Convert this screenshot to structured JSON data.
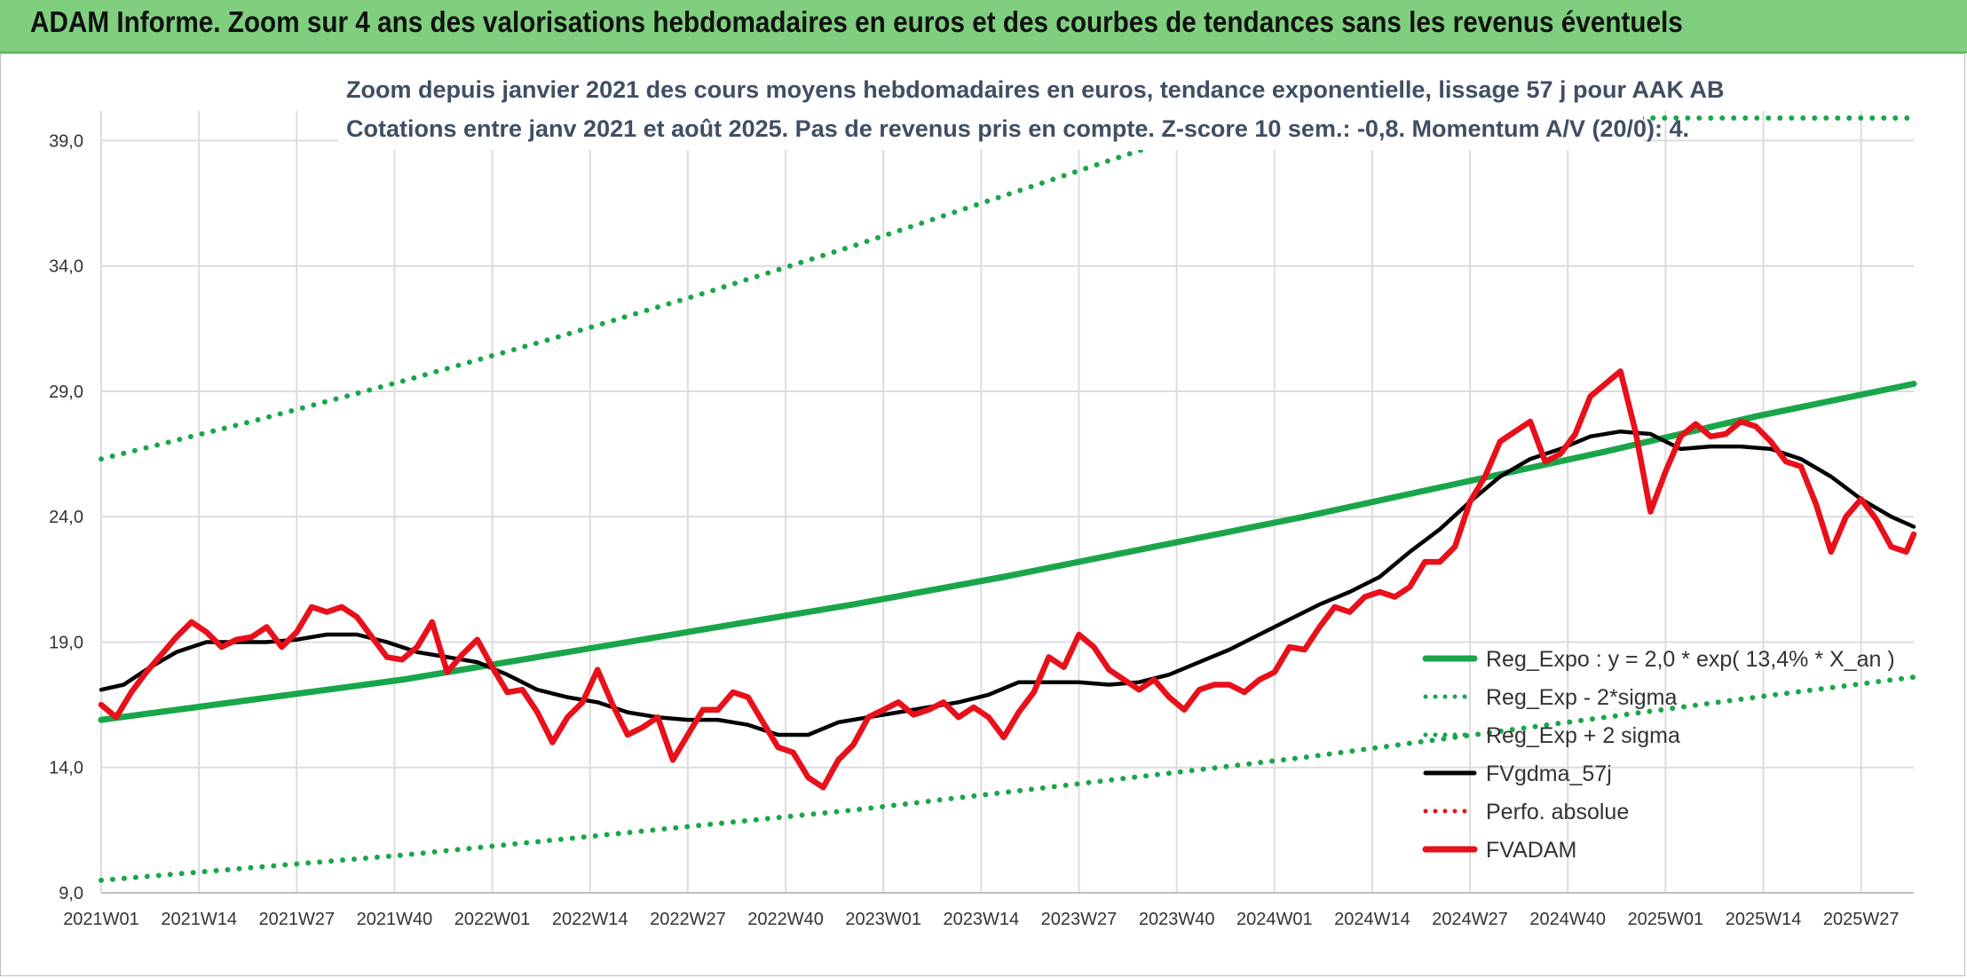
{
  "header": {
    "title": "ADAM Informe. Zoom sur 4 ans des valorisations hebdomadaires en euros et des courbes de tendances sans les revenus éventuels"
  },
  "chart_data": {
    "type": "line",
    "subtitle_line1": "Zoom depuis janvier 2021 des cours moyens hebdomadaires en euros, tendance exponentielle, lissage 57 j pour AAK AB",
    "subtitle_line2": "Cotations entre janv 2021 et août 2025. Pas de revenus pris en compte. Z-score 10 sem.: -0,8. Momentum A/V (20/0): 4.",
    "x_tick_labels": [
      "2021W01",
      "2021W14",
      "2021W27",
      "2021W40",
      "2022W01",
      "2022W14",
      "2022W27",
      "2022W40",
      "2023W01",
      "2023W14",
      "2023W27",
      "2023W40",
      "2024W01",
      "2024W14",
      "2024W27",
      "2024W40",
      "2025W01",
      "2025W14",
      "2025W27"
    ],
    "y_tick_labels": [
      "9,0",
      "14,0",
      "19,0",
      "24,0",
      "29,0",
      "34,0",
      "39,0"
    ],
    "y_ticks": [
      9,
      14,
      19,
      24,
      29,
      34,
      39
    ],
    "ylim": [
      9,
      39.9
    ],
    "x_unit": "weeks",
    "x_range_weeks": [
      0,
      241
    ],
    "grid": true,
    "legend_position": "bottom-right",
    "legend": [
      {
        "label": "Reg_Expo : y = 2,0 * exp( 13,4% *  X_an )",
        "style": "solid-thick",
        "color": "#19a64a"
      },
      {
        "label": "Reg_Exp - 2*sigma",
        "style": "dotted",
        "color": "#19a64a"
      },
      {
        "label": "Reg_Exp + 2 sigma",
        "style": "dotted",
        "color": "#19a64a"
      },
      {
        "label": "FVgdma_57j",
        "style": "solid",
        "color": "#000000"
      },
      {
        "label": "Perfo. absolue",
        "style": "dotted",
        "color": "#e8101a"
      },
      {
        "label": "FVADAM",
        "style": "solid-thick",
        "color": "#e8101a"
      }
    ],
    "series": [
      {
        "name": "Reg_Expo : y = 2,0 * exp( 13,4% *  X_an )",
        "color": "#19a64a",
        "style": "solid",
        "x": [
          0,
          20,
          40,
          60,
          80,
          100,
          120,
          140,
          160,
          180,
          200,
          220,
          241
        ],
        "values": [
          15.9,
          16.7,
          17.5,
          18.5,
          19.5,
          20.5,
          21.6,
          22.8,
          24.0,
          25.3,
          26.6,
          28.0,
          29.3
        ]
      },
      {
        "name": "Reg_Exp + 2 sigma",
        "color": "#19a64a",
        "style": "dotted",
        "x": [
          0,
          20,
          40,
          60,
          80,
          100,
          120,
          140,
          148,
          210,
          241
        ],
        "values": [
          26.3,
          27.8,
          29.4,
          31.1,
          32.9,
          34.8,
          36.8,
          38.8,
          39.9,
          39.9,
          39.9
        ]
      },
      {
        "name": "Reg_Exp - 2*sigma",
        "color": "#19a64a",
        "style": "dotted",
        "x": [
          0,
          20,
          40,
          60,
          80,
          100,
          120,
          140,
          160,
          180,
          200,
          220,
          241
        ],
        "values": [
          9.5,
          10.0,
          10.5,
          11.1,
          11.7,
          12.3,
          13.0,
          13.7,
          14.4,
          15.2,
          16.0,
          16.8,
          17.6
        ]
      },
      {
        "name": "FVgdma_57j",
        "color": "#000000",
        "style": "solid",
        "x": [
          0,
          3,
          6,
          10,
          14,
          18,
          22,
          26,
          30,
          34,
          38,
          42,
          46,
          50,
          54,
          58,
          62,
          66,
          70,
          74,
          78,
          82,
          86,
          90,
          94,
          98,
          102,
          106,
          110,
          114,
          118,
          122,
          126,
          130,
          134,
          138,
          142,
          146,
          150,
          154,
          158,
          162,
          166,
          170,
          174,
          178,
          182,
          186,
          190,
          194,
          198,
          202,
          206,
          210,
          214,
          218,
          222,
          226,
          230,
          234,
          238,
          241
        ],
        "values": [
          17.1,
          17.3,
          17.9,
          18.6,
          19.0,
          19.0,
          19.0,
          19.1,
          19.3,
          19.3,
          19.0,
          18.6,
          18.4,
          18.2,
          17.7,
          17.1,
          16.8,
          16.6,
          16.2,
          16.0,
          15.9,
          15.9,
          15.7,
          15.3,
          15.3,
          15.8,
          16.0,
          16.2,
          16.4,
          16.6,
          16.9,
          17.4,
          17.4,
          17.4,
          17.3,
          17.4,
          17.7,
          18.2,
          18.7,
          19.3,
          19.9,
          20.5,
          21.0,
          21.6,
          22.6,
          23.5,
          24.6,
          25.6,
          26.3,
          26.7,
          27.2,
          27.4,
          27.3,
          26.7,
          26.8,
          26.8,
          26.7,
          26.3,
          25.6,
          24.7,
          24.0,
          23.6
        ]
      },
      {
        "name": "FVADAM",
        "color": "#e8101a",
        "style": "solid-thick",
        "x": [
          0,
          2,
          4,
          6,
          8,
          10,
          12,
          14,
          16,
          18,
          20,
          22,
          24,
          26,
          28,
          30,
          32,
          34,
          36,
          38,
          40,
          42,
          44,
          46,
          48,
          50,
          52,
          54,
          56,
          58,
          60,
          62,
          64,
          66,
          68,
          70,
          72,
          74,
          76,
          78,
          80,
          82,
          84,
          86,
          88,
          90,
          92,
          94,
          96,
          98,
          100,
          102,
          104,
          106,
          108,
          110,
          112,
          114,
          116,
          118,
          120,
          122,
          124,
          126,
          128,
          130,
          132,
          134,
          136,
          138,
          140,
          142,
          144,
          146,
          148,
          150,
          152,
          154,
          156,
          158,
          160,
          162,
          164,
          166,
          168,
          170,
          172,
          174,
          176,
          178,
          180,
          182,
          184,
          186,
          188,
          190,
          192,
          194,
          196,
          198,
          200,
          202,
          204,
          206,
          208,
          210,
          212,
          214,
          216,
          218,
          220,
          222,
          224,
          226,
          228,
          230,
          232,
          234,
          236,
          238,
          240,
          241
        ],
        "values": [
          16.5,
          16.0,
          17.0,
          17.8,
          18.5,
          19.2,
          19.8,
          19.4,
          18.8,
          19.1,
          19.2,
          19.6,
          18.8,
          19.4,
          20.4,
          20.2,
          20.4,
          20.0,
          19.2,
          18.4,
          18.3,
          18.8,
          19.8,
          17.8,
          18.5,
          19.1,
          18.0,
          17.0,
          17.1,
          16.2,
          15.0,
          16.0,
          16.6,
          17.9,
          16.5,
          15.3,
          15.6,
          16.0,
          14.3,
          15.3,
          16.3,
          16.3,
          17.0,
          16.8,
          15.8,
          14.8,
          14.6,
          13.6,
          13.2,
          14.3,
          14.9,
          16.0,
          16.3,
          16.6,
          16.1,
          16.3,
          16.6,
          16.0,
          16.4,
          16.0,
          15.2,
          16.2,
          17.0,
          18.4,
          18.0,
          19.3,
          18.8,
          17.9,
          17.5,
          17.1,
          17.5,
          16.8,
          16.3,
          17.1,
          17.3,
          17.3,
          17.0,
          17.5,
          17.8,
          18.8,
          18.7,
          19.6,
          20.4,
          20.2,
          20.8,
          21.0,
          20.8,
          21.2,
          22.2,
          22.2,
          22.8,
          24.6,
          25.6,
          27.0,
          27.4,
          27.8,
          26.2,
          26.5,
          27.3,
          28.8,
          29.3,
          29.8,
          27.4,
          24.2,
          25.8,
          27.2,
          27.7,
          27.2,
          27.3,
          27.8,
          27.6,
          27.0,
          26.2,
          26.0,
          24.5,
          22.6,
          24.0,
          24.7,
          23.9,
          22.8,
          22.6,
          23.3
        ]
      }
    ]
  }
}
